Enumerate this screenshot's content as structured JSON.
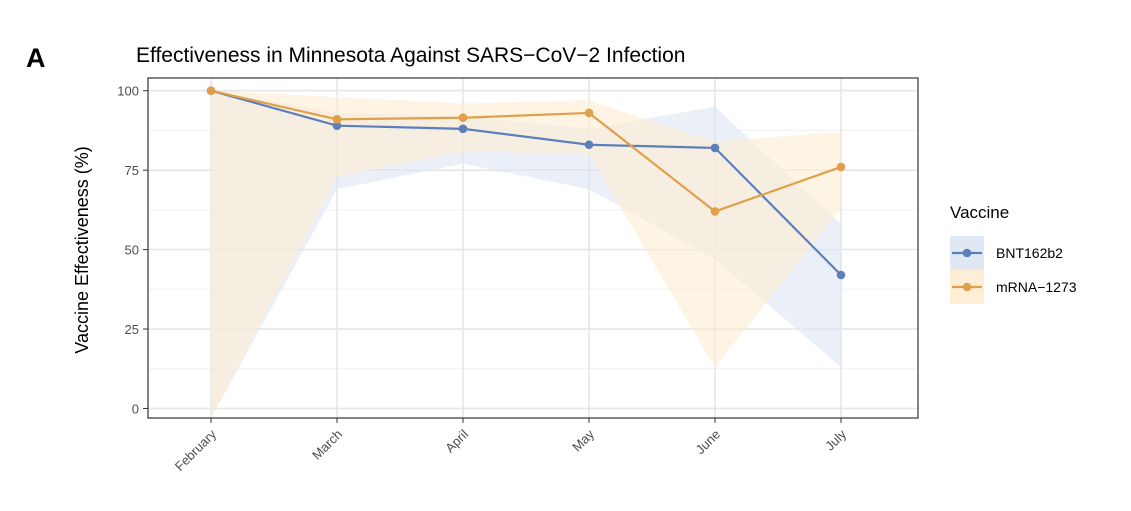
{
  "panel_letter": "A",
  "chart_data": {
    "type": "line",
    "title": "Effectiveness in Minnesota Against SARS−CoV−2 Infection",
    "xlabel": "",
    "ylabel": "Vaccine Effectiveness (%)",
    "categories": [
      "February",
      "March",
      "April",
      "May",
      "June",
      "July"
    ],
    "ylim": [
      -3,
      104
    ],
    "yticks": [
      0,
      25,
      50,
      75,
      100
    ],
    "grid": true,
    "legend": {
      "title": "Vaccine",
      "position": "right"
    },
    "series": [
      {
        "name": "BNT162b2",
        "color": "#5b7fba",
        "ribbon_color": "#dde5f3",
        "values": [
          100,
          89,
          88,
          83,
          82,
          42
        ],
        "lower": [
          -3,
          69,
          77,
          69,
          47,
          13
        ],
        "upper": [
          100,
          93,
          92,
          88,
          95,
          58
        ]
      },
      {
        "name": "mRNA−1273",
        "color": "#e0a04a",
        "ribbon_color": "#fdecd0",
        "values": [
          100,
          91,
          91.5,
          93,
          62,
          76
        ],
        "lower": [
          -3,
          73,
          81,
          80,
          13,
          63
        ],
        "upper": [
          100,
          98,
          96,
          97,
          84,
          87
        ]
      }
    ]
  }
}
